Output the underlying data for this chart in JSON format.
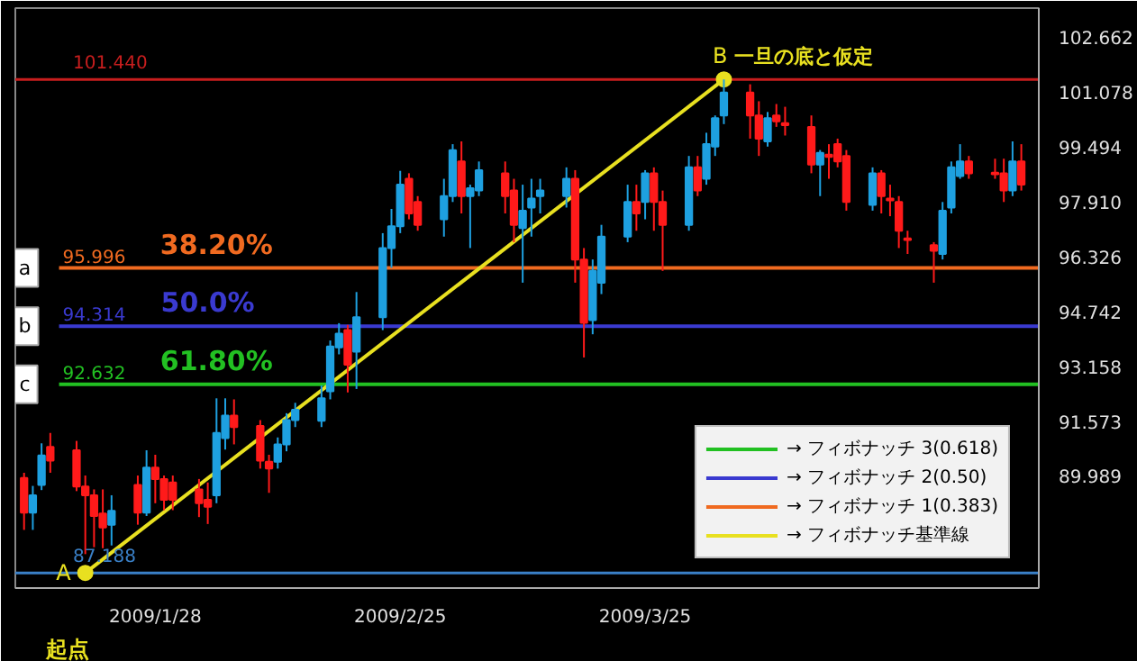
{
  "chart_data": {
    "type": "candlestick",
    "x": [
      "2009-01-13",
      "2009-01-14",
      "2009-01-15",
      "2009-01-16",
      "2009-01-19",
      "2009-01-20",
      "2009-01-21",
      "2009-01-22",
      "2009-01-23",
      "2009-01-26",
      "2009-01-27",
      "2009-01-28",
      "2009-01-29",
      "2009-01-30",
      "2009-02-02",
      "2009-02-03",
      "2009-02-04",
      "2009-02-05",
      "2009-02-06",
      "2009-02-09",
      "2009-02-10",
      "2009-02-11",
      "2009-02-12",
      "2009-02-13",
      "2009-02-16",
      "2009-02-17",
      "2009-02-18",
      "2009-02-19",
      "2009-02-20",
      "2009-02-23",
      "2009-02-24",
      "2009-02-25",
      "2009-02-26",
      "2009-02-27",
      "2009-03-02",
      "2009-03-03",
      "2009-03-04",
      "2009-03-05",
      "2009-03-06",
      "2009-03-09",
      "2009-03-10",
      "2009-03-11",
      "2009-03-12",
      "2009-03-13",
      "2009-03-16",
      "2009-03-17",
      "2009-03-18",
      "2009-03-19",
      "2009-03-20",
      "2009-03-23",
      "2009-03-24",
      "2009-03-25",
      "2009-03-26",
      "2009-03-27",
      "2009-03-30",
      "2009-03-31",
      "2009-04-01",
      "2009-04-02",
      "2009-04-03",
      "2009-04-06",
      "2009-04-07",
      "2009-04-08",
      "2009-04-09",
      "2009-04-10",
      "2009-04-13",
      "2009-04-14",
      "2009-04-15",
      "2009-04-16",
      "2009-04-17",
      "2009-04-20",
      "2009-04-21",
      "2009-04-22",
      "2009-04-23",
      "2009-04-24",
      "2009-04-27",
      "2009-04-28",
      "2009-04-29",
      "2009-04-30",
      "2009-05-01",
      "2009-05-04",
      "2009-05-05",
      "2009-05-06",
      "2009-05-07"
    ],
    "ohlc": [
      [
        89.93,
        90.08,
        88.43,
        88.93
      ],
      [
        88.93,
        89.7,
        88.43,
        89.43
      ],
      [
        89.73,
        90.93,
        89.58,
        90.58
      ],
      [
        90.83,
        91.23,
        90.08,
        90.43
      ],
      [
        90.73,
        91.0,
        89.55,
        89.68
      ],
      [
        89.68,
        90.0,
        87.73,
        89.43
      ],
      [
        89.43,
        89.6,
        87.93,
        88.83
      ],
      [
        88.9,
        89.6,
        87.9,
        88.5
      ],
      [
        88.58,
        89.43,
        87.98,
        88.98
      ],
      [
        89.73,
        90.0,
        88.58,
        88.93
      ],
      [
        88.93,
        90.73,
        88.83,
        90.23
      ],
      [
        90.23,
        90.6,
        89.2,
        89.9
      ],
      [
        89.9,
        90.0,
        89.0,
        89.3
      ],
      [
        89.8,
        90.0,
        89.0,
        89.3
      ],
      [
        89.6,
        89.9,
        88.8,
        89.2
      ],
      [
        89.3,
        89.8,
        88.6,
        89.1
      ],
      [
        89.43,
        92.23,
        89.2,
        91.23
      ],
      [
        91.08,
        92.23,
        90.75,
        91.73
      ],
      [
        91.73,
        92.2,
        90.9,
        91.4
      ],
      [
        91.43,
        91.6,
        90.2,
        90.43
      ],
      [
        90.4,
        90.6,
        89.5,
        90.2
      ],
      [
        90.4,
        91.1,
        90.2,
        90.9
      ],
      [
        90.9,
        91.8,
        90.7,
        91.6
      ],
      [
        91.6,
        92.1,
        91.4,
        91.9
      ],
      [
        91.58,
        92.6,
        91.4,
        92.23
      ],
      [
        92.43,
        93.9,
        92.2,
        93.73
      ],
      [
        93.7,
        94.4,
        93.5,
        94.1
      ],
      [
        94.2,
        94.35,
        92.4,
        93.2
      ],
      [
        93.58,
        95.3,
        92.5,
        94.57
      ],
      [
        94.57,
        97.0,
        94.2,
        96.57
      ],
      [
        96.57,
        97.7,
        96.0,
        97.2
      ],
      [
        97.2,
        98.8,
        97.0,
        98.4
      ],
      [
        98.57,
        98.73,
        97.4,
        97.57
      ],
      [
        97.9,
        98.07,
        97.07,
        97.24
      ],
      [
        97.4,
        98.57,
        96.9,
        98.07
      ],
      [
        98.07,
        99.57,
        97.9,
        99.4
      ],
      [
        99.07,
        99.65,
        97.57,
        98.07
      ],
      [
        98.07,
        98.4,
        96.57,
        98.3
      ],
      [
        98.23,
        99.07,
        98.07,
        98.82
      ],
      [
        98.73,
        99.07,
        97.57,
        98.07
      ],
      [
        98.23,
        98.57,
        96.74,
        97.24
      ],
      [
        97.15,
        98.4,
        95.57,
        97.65
      ],
      [
        97.74,
        98.57,
        96.9,
        98.0
      ],
      [
        98.07,
        98.57,
        97.57,
        98.23
      ],
      [
        98.07,
        98.9,
        97.74,
        98.57
      ],
      [
        98.57,
        98.82,
        95.57,
        96.24
      ],
      [
        96.24,
        96.57,
        93.41,
        94.41
      ],
      [
        94.49,
        96.24,
        94.08,
        95.91
      ],
      [
        95.57,
        97.24,
        95.24,
        96.9
      ],
      [
        96.9,
        98.4,
        96.74,
        97.9
      ],
      [
        97.9,
        98.4,
        97.07,
        97.57
      ],
      [
        97.9,
        98.82,
        97.4,
        98.73
      ],
      [
        98.73,
        98.9,
        97.07,
        97.9
      ],
      [
        97.9,
        98.23,
        95.91,
        97.24
      ],
      [
        97.24,
        99.23,
        97.07,
        98.9
      ],
      [
        98.9,
        99.23,
        98.07,
        98.23
      ],
      [
        98.57,
        99.9,
        98.4,
        99.57
      ],
      [
        99.5,
        100.4,
        99.23,
        100.32
      ],
      [
        100.4,
        101.44,
        100.15,
        101.06
      ],
      [
        101.06,
        101.3,
        99.73,
        100.4
      ],
      [
        100.4,
        100.81,
        99.23,
        99.73
      ],
      [
        99.65,
        100.5,
        99.5,
        100.32
      ],
      [
        100.4,
        100.73,
        100.07,
        100.23
      ],
      [
        100.18,
        100.65,
        99.82,
        100.12
      ],
      [
        100.07,
        100.4,
        98.73,
        98.98
      ],
      [
        98.98,
        99.4,
        98.07,
        99.32
      ],
      [
        99.27,
        99.57,
        98.57,
        99.2
      ],
      [
        99.57,
        99.73,
        98.9,
        99.07
      ],
      [
        99.23,
        99.4,
        97.65,
        97.9
      ],
      [
        97.82,
        98.9,
        97.65,
        98.73
      ],
      [
        98.73,
        98.82,
        97.57,
        98.07
      ],
      [
        98.0,
        98.4,
        97.49,
        97.95
      ],
      [
        97.9,
        98.07,
        96.57,
        97.07
      ],
      [
        96.85,
        97.07,
        96.4,
        96.8
      ],
      [
        96.65,
        96.74,
        95.57,
        96.49
      ],
      [
        96.4,
        97.9,
        96.24,
        97.65
      ],
      [
        97.74,
        99.07,
        97.57,
        98.9
      ],
      [
        98.65,
        99.57,
        98.57,
        99.07
      ],
      [
        99.07,
        99.23,
        98.57,
        98.73
      ],
      [
        98.75,
        99.15,
        98.57,
        98.7
      ],
      [
        98.73,
        99.15,
        97.9,
        98.23
      ],
      [
        98.23,
        99.65,
        98.07,
        99.07
      ],
      [
        99.07,
        99.57,
        98.23,
        98.4
      ]
    ],
    "colors": [
      "#ff1a1a",
      "#1ea0e0",
      "#1ea0e0",
      "#ff1a1a",
      "#ff1a1a",
      "#ff1a1a",
      "#ff1a1a",
      "#ff1a1a",
      "#1ea0e0",
      "#ff1a1a",
      "#1ea0e0",
      "#ff1a1a",
      "#ff1a1a",
      "#ff1a1a",
      "#ff1a1a",
      "#ff1a1a",
      "#1ea0e0",
      "#1ea0e0",
      "#ff1a1a",
      "#ff1a1a",
      "#ff1a1a",
      "#1ea0e0",
      "#1ea0e0",
      "#1ea0e0",
      "#1ea0e0",
      "#1ea0e0",
      "#1ea0e0",
      "#ff1a1a",
      "#1ea0e0",
      "#1ea0e0",
      "#1ea0e0",
      "#1ea0e0",
      "#ff1a1a",
      "#ff1a1a",
      "#1ea0e0",
      "#1ea0e0",
      "#ff1a1a",
      "#1ea0e0",
      "#1ea0e0",
      "#ff1a1a",
      "#ff1a1a",
      "#1ea0e0",
      "#1ea0e0",
      "#1ea0e0",
      "#1ea0e0",
      "#ff1a1a",
      "#ff1a1a",
      "#1ea0e0",
      "#1ea0e0",
      "#1ea0e0",
      "#ff1a1a",
      "#1ea0e0",
      "#ff1a1a",
      "#ff1a1a",
      "#1ea0e0",
      "#ff1a1a",
      "#1ea0e0",
      "#1ea0e0",
      "#1ea0e0",
      "#ff1a1a",
      "#ff1a1a",
      "#1ea0e0",
      "#ff1a1a",
      "#ff1a1a",
      "#ff1a1a",
      "#1ea0e0",
      "#ff1a1a",
      "#ff1a1a",
      "#ff1a1a",
      "#1ea0e0",
      "#ff1a1a",
      "#ff1a1a",
      "#ff1a1a",
      "#ff1a1a",
      "#ff1a1a",
      "#1ea0e0",
      "#1ea0e0",
      "#1ea0e0",
      "#ff1a1a",
      "#ff1a1a",
      "#ff1a1a",
      "#1ea0e0",
      "#ff1a1a"
    ],
    "series": [
      {
        "type": "line",
        "name": "→ フィボナッチ 3(0.618)",
        "color": "#22c022",
        "x": [
          "2009-01-17",
          "2009-05-09"
        ],
        "values": [
          92.632,
          92.632
        ],
        "value_labels": [
          "92.632",
          null
        ]
      },
      {
        "type": "line",
        "name": "→ フィボナッチ 2(0.50)",
        "color": "#3a3ad0",
        "x": [
          "2009-01-17",
          "2009-05-09"
        ],
        "values": [
          94.314,
          94.314
        ],
        "value_labels": [
          "94.314",
          null
        ]
      },
      {
        "type": "line",
        "name": "→ フィボナッチ 1(0.383)",
        "color": "#f06a20",
        "x": [
          "2009-01-17",
          "2009-05-09"
        ],
        "values": [
          95.996,
          95.996
        ],
        "value_labels": [
          "95.996",
          null
        ]
      },
      {
        "type": "line",
        "name": "→ フィボナッチ基準線",
        "color": "#e8e020",
        "x": [
          "2009-01-20",
          "2009-04-03"
        ],
        "values": [
          87.188,
          101.44
        ],
        "marker": "circle"
      }
    ],
    "ref_lines": [
      {
        "axis": "y",
        "value": 101.44,
        "label": "101.440",
        "color": "#c81e1e"
      },
      {
        "axis": "y",
        "value": 87.188,
        "label": "87.188",
        "color": "#3a80c8"
      }
    ],
    "annotations": [
      {
        "text": "38.20%",
        "x": "2009-02-04",
        "y": 95.996
      },
      {
        "text": "50.0%",
        "x": "2009-02-03",
        "y": 94.314
      },
      {
        "text": "61.80%",
        "x": "2009-02-04",
        "y": 92.632
      },
      {
        "text": "a",
        "x": "2009-01-17",
        "y": 95.996
      },
      {
        "text": "b",
        "x": "2009-01-17",
        "y": 94.314
      },
      {
        "text": "c",
        "x": "2009-01-17",
        "y": 92.632
      },
      {
        "text": "A",
        "x": "2009-01-20",
        "y": 87.188
      },
      "起点",
      {
        "text": "B",
        "x": "2009-04-03",
        "y": 101.44
      },
      "一旦の底と仮定"
    ],
    "xlim": [
      "2009-01-12",
      "2009-05-09"
    ],
    "xticks": [
      {
        "value": "2009-01-28",
        "label": "2009/1/28"
      },
      {
        "value": "2009-02-25",
        "label": "2009/2/25"
      },
      {
        "value": "2009-03-25",
        "label": "2009/3/25"
      }
    ],
    "ylim": [
      86.75,
      103.5
    ],
    "yticks": [
      {
        "value": 89.989,
        "label": "89.989"
      },
      {
        "value": 91.573,
        "label": "91.573"
      },
      {
        "value": 93.158,
        "label": "93.158"
      },
      {
        "value": 94.742,
        "label": "94.742"
      },
      {
        "value": 96.326,
        "label": "96.326"
      },
      {
        "value": 97.91,
        "label": "97.910"
      },
      {
        "value": 99.494,
        "label": "99.494"
      },
      {
        "value": 101.078,
        "label": "101.078"
      },
      {
        "value": 102.662,
        "label": "102.662"
      }
    ],
    "legend": "bottom right"
  }
}
